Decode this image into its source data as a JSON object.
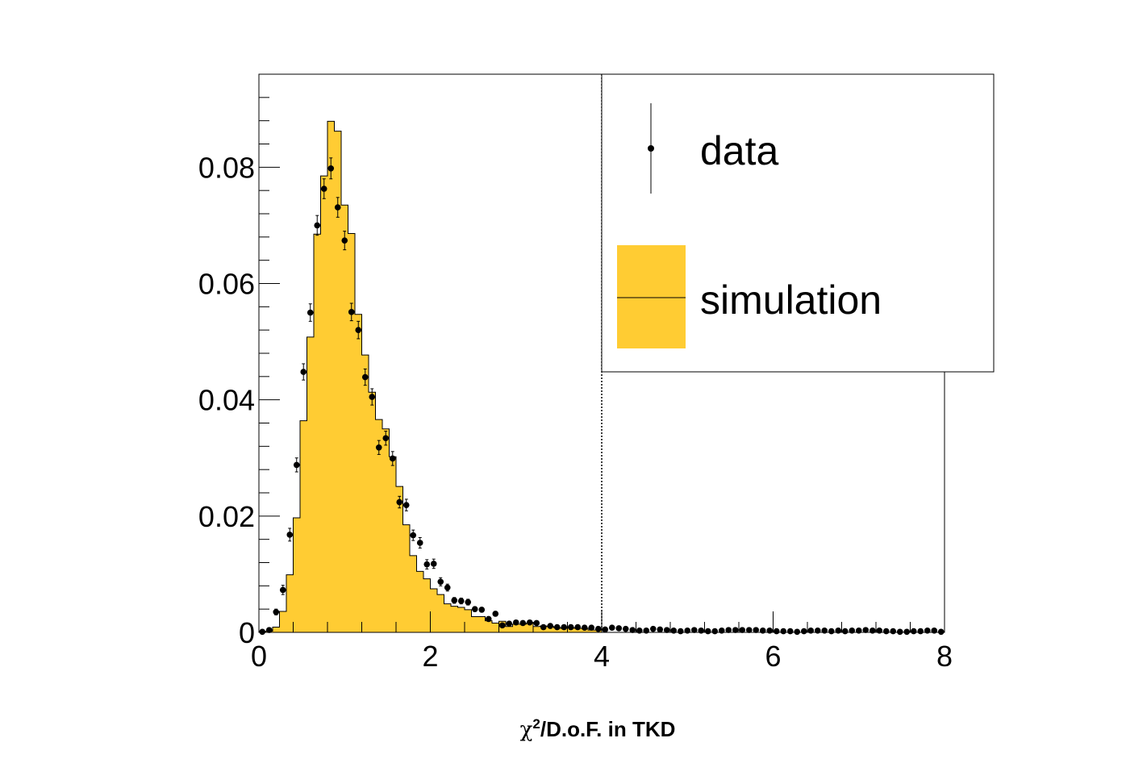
{
  "chart_data": {
    "type": "histogram",
    "xlabel": "χ²/D.o.F. in TKD",
    "xlabel_parts": {
      "symbol": "χ",
      "superscript": "2",
      "rest": "/D.o.F. in TKD"
    },
    "ylabel": "",
    "xlim": [
      0,
      8
    ],
    "ylim": [
      0,
      0.096
    ],
    "x_ticks": [
      0,
      2,
      4,
      6,
      8
    ],
    "x_tick_labels": [
      "0",
      "2",
      "4",
      "6",
      "8"
    ],
    "y_ticks": [
      0,
      0.02,
      0.04,
      0.06,
      0.08
    ],
    "y_tick_labels": [
      "0",
      "0.02",
      "0.04",
      "0.06",
      "0.08"
    ],
    "grid": false,
    "legend_position": "top-right",
    "cut_line_x": 4,
    "bin_width": 0.08,
    "series": [
      {
        "name": "data",
        "style": "points with error bars",
        "color": "#000000",
        "x": [
          0.04,
          0.12,
          0.2,
          0.28,
          0.36,
          0.44,
          0.52,
          0.6,
          0.68,
          0.76,
          0.84,
          0.92,
          1.0,
          1.08,
          1.16,
          1.24,
          1.32,
          1.4,
          1.48,
          1.56,
          1.64,
          1.72,
          1.8,
          1.88,
          1.96,
          2.04,
          2.12,
          2.2,
          2.28,
          2.36,
          2.44,
          2.52,
          2.6,
          2.68,
          2.76,
          2.84,
          2.92,
          3.0,
          3.08,
          3.16,
          3.24,
          3.32,
          3.4,
          3.48,
          3.56,
          3.64,
          3.72,
          3.8,
          3.88,
          3.96,
          4.04,
          4.12,
          4.2,
          4.28,
          4.36,
          4.44,
          4.52,
          4.6,
          4.68,
          4.76,
          4.84,
          4.92,
          5.0,
          5.08,
          5.16,
          5.24,
          5.32,
          5.4,
          5.48,
          5.56,
          5.64,
          5.72,
          5.8,
          5.88,
          5.96,
          6.04,
          6.12,
          6.2,
          6.28,
          6.36,
          6.44,
          6.52,
          6.6,
          6.68,
          6.76,
          6.84,
          6.92,
          7.0,
          7.08,
          7.16,
          7.24,
          7.32,
          7.4,
          7.48,
          7.56,
          7.64,
          7.72,
          7.8,
          7.88,
          7.96
        ],
        "values": [
          0.0001,
          0.0004,
          0.0035,
          0.0073,
          0.0168,
          0.0288,
          0.0448,
          0.055,
          0.07,
          0.0763,
          0.0798,
          0.0731,
          0.0674,
          0.0551,
          0.052,
          0.0439,
          0.0405,
          0.0318,
          0.0334,
          0.0299,
          0.0224,
          0.0219,
          0.0167,
          0.0154,
          0.0117,
          0.0118,
          0.0087,
          0.0077,
          0.0055,
          0.0054,
          0.0052,
          0.004,
          0.0039,
          0.0023,
          0.0032,
          0.0012,
          0.0015,
          0.0017,
          0.0016,
          0.0017,
          0.0016,
          0.0009,
          0.0011,
          0.0009,
          0.0009,
          0.0009,
          0.0009,
          0.0008,
          0.0008,
          0.0006,
          0.0005,
          0.0008,
          0.0007,
          0.0006,
          0.0004,
          0.0003,
          0.0003,
          0.0006,
          0.0005,
          0.0004,
          0.0003,
          0.0002,
          0.0003,
          0.0004,
          0.0003,
          0.0002,
          0.0002,
          0.0003,
          0.0004,
          0.0004,
          0.0004,
          0.0004,
          0.0004,
          0.0003,
          0.0003,
          0.0002,
          0.0002,
          0.0002,
          0.0001,
          0.0002,
          0.0003,
          0.0003,
          0.0003,
          0.0002,
          0.0003,
          0.0002,
          0.0003,
          0.0003,
          0.0004,
          0.0003,
          0.0003,
          0.0002,
          0.0002,
          0.0001,
          0.0001,
          0.0002,
          0.0002,
          0.0003,
          0.0003,
          0.0001
        ],
        "errors": [
          0.0001,
          0.0003,
          0.0005,
          0.0008,
          0.0011,
          0.0012,
          0.0014,
          0.0015,
          0.0017,
          0.0017,
          0.0018,
          0.0017,
          0.0016,
          0.0015,
          0.0015,
          0.0014,
          0.0014,
          0.0012,
          0.0012,
          0.0012,
          0.001,
          0.001,
          0.0009,
          0.0009,
          0.0008,
          0.0008,
          0.0007,
          0.0006,
          0.0005,
          0.0005,
          0.0005,
          0.0004,
          0.0004,
          0.0003,
          0.0004,
          0.0002,
          0.0003,
          0.0003,
          0.0003,
          0.0003,
          0.0003,
          0.0002,
          0.0002,
          0.0002,
          0.0002,
          0.0002,
          0.0002,
          0.0002,
          0.0002,
          0.0002,
          0.0002,
          0.0002,
          0.0002,
          0.0002,
          0.0001,
          0.0001,
          0.0001,
          0.0002,
          0.0002,
          0.0001,
          0.0001,
          0.0001,
          0.0001,
          0.0001,
          0.0001,
          0.0001,
          0.0001,
          0.0001,
          0.0001,
          0.0001,
          0.0001,
          0.0001,
          0.0001,
          0.0001,
          0.0001,
          0.0001,
          0.0001,
          0.0001,
          0.0001,
          0.0001,
          0.0001,
          0.0001,
          0.0001,
          0.0001,
          0.0001,
          0.0001,
          0.0001,
          0.0001,
          0.0001,
          0.0001,
          0.0001,
          0.0001,
          0.0001,
          0.0001,
          0.0001,
          0.0001,
          0.0001,
          0.0001,
          0.0001,
          0.0001
        ]
      },
      {
        "name": "simulation",
        "style": "filled histogram",
        "color": "#ffcc33",
        "edges": [
          0,
          0.08,
          0.16,
          0.24,
          0.32,
          0.4,
          0.48,
          0.56,
          0.64,
          0.72,
          0.8,
          0.88,
          0.96,
          1.04,
          1.12,
          1.2,
          1.28,
          1.36,
          1.44,
          1.52,
          1.6,
          1.68,
          1.76,
          1.84,
          1.92,
          2.0,
          2.08,
          2.16,
          2.24,
          2.32,
          2.4,
          2.48,
          2.56,
          2.64,
          2.72,
          2.8,
          2.88,
          2.96,
          3.04,
          3.12,
          3.2,
          3.28,
          3.36,
          3.44,
          3.52,
          3.6,
          3.68,
          3.76,
          3.84,
          3.92,
          4.0
        ],
        "values": [
          0.0001,
          0.0002,
          0.0009,
          0.0036,
          0.0099,
          0.0197,
          0.0364,
          0.0508,
          0.0685,
          0.0785,
          0.0879,
          0.0862,
          0.0735,
          0.0686,
          0.0547,
          0.0477,
          0.0413,
          0.0366,
          0.035,
          0.0302,
          0.0251,
          0.0185,
          0.0132,
          0.0105,
          0.0092,
          0.0075,
          0.0065,
          0.0049,
          0.0045,
          0.0043,
          0.0039,
          0.0027,
          0.0027,
          0.002,
          0.0016,
          0.0019,
          0.001,
          0.0014,
          0.0014,
          0.0016,
          0.001,
          0.0011,
          0.001,
          0.0008,
          0.0007,
          0.0008,
          0.0007,
          0.0007,
          0.0004,
          0.0004
        ]
      }
    ]
  }
}
